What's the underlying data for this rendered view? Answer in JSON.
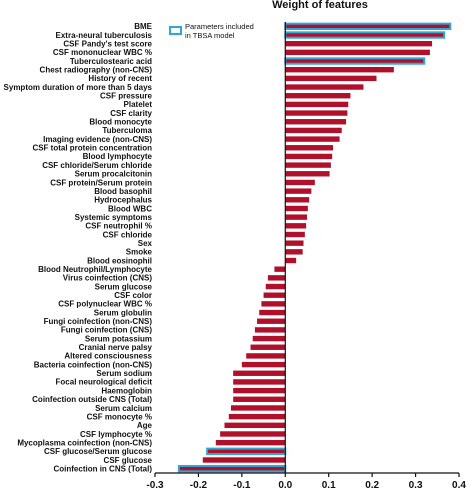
{
  "chart_data": {
    "type": "bar",
    "orientation": "horizontal",
    "title": "Weight of features",
    "xlabel": "",
    "ylabel": "",
    "xlim": [
      -0.3,
      0.4
    ],
    "xticks": [
      -0.3,
      -0.2,
      -0.1,
      0.0,
      0.1,
      0.2,
      0.3,
      0.4
    ],
    "xtick_labels": [
      "-0.3",
      "-0.2",
      "-0.1",
      "0.0",
      "0.1",
      "0.2",
      "0.3",
      "0.4"
    ],
    "grid": false,
    "legend": {
      "placement": "top-left",
      "entries": [
        {
          "label_line1": "Parameters included",
          "label_line2": "in TBSA model"
        }
      ]
    },
    "colors": {
      "bar": "#b0102a",
      "highlight": "#2fa8d4",
      "axis": "#111111"
    },
    "categories": [
      "BME",
      "Extra-neural tuberculosis",
      "CSF Pandy's test score",
      "CSF mononuclear WBC %",
      "Tuberculostearic acid",
      "Chest radiography (non-CNS)",
      "History of recent",
      "Symptom duration of more than 5 days",
      "CSF pressure",
      "Platelet",
      "CSF clarity",
      "Blood monocyte",
      "Tuberculoma",
      "Imaging evidence (non-CNS)",
      "CSF total protein concentration",
      "Blood lymphocyte",
      "CSF chloride/Serum chloride",
      "Serum procalcitonin",
      "CSF protein/Serum protein",
      "Blood basophil",
      "Hydrocephalus",
      "Blood WBC",
      "Systemic symptoms",
      "CSF neutrophil %",
      "CSF chloride",
      "Sex",
      "Smoke",
      "Blood eosinophil",
      "Blood Neutrophil/Lymphocyte",
      "Virus coinfection (CNS)",
      "Serum glucose",
      "CSF color",
      "CSF polynuclear WBC %",
      "Serum globulin",
      "Fungi coinfection (non-CNS)",
      "Fungi coinfection (CNS)",
      "Serum potassium",
      "Cranial nerve palsy",
      "Altered consciousness",
      "Bacteria coinfection (non-CNS)",
      "Serum sodium",
      "Focal neurological deficit",
      "Haemoglobin",
      "Coinfection outside CNS (Total)",
      "Serum calcium",
      "CSF monocyte %",
      "Age",
      "CSF lymphocyte %",
      "Mycoplasma coinfection (non-CNS)",
      "CSF glucose/Serum glucose",
      "CSF glucose",
      "Coinfection in CNS (Total)"
    ],
    "values": [
      0.38,
      0.366,
      0.338,
      0.333,
      0.32,
      0.25,
      0.21,
      0.18,
      0.15,
      0.145,
      0.143,
      0.14,
      0.13,
      0.125,
      0.11,
      0.108,
      0.105,
      0.102,
      0.068,
      0.06,
      0.055,
      0.052,
      0.05,
      0.048,
      0.045,
      0.042,
      0.04,
      0.025,
      -0.025,
      -0.04,
      -0.045,
      -0.05,
      -0.055,
      -0.06,
      -0.065,
      -0.07,
      -0.075,
      -0.08,
      -0.09,
      -0.1,
      -0.12,
      -0.12,
      -0.12,
      -0.12,
      -0.125,
      -0.13,
      -0.14,
      -0.15,
      -0.16,
      -0.18,
      -0.19,
      -0.245
    ],
    "highlighted_in_TBSA": [
      "BME",
      "Extra-neural tuberculosis",
      "Tuberculostearic acid",
      "CSF glucose/Serum glucose",
      "Coinfection in CNS (Total)"
    ]
  }
}
